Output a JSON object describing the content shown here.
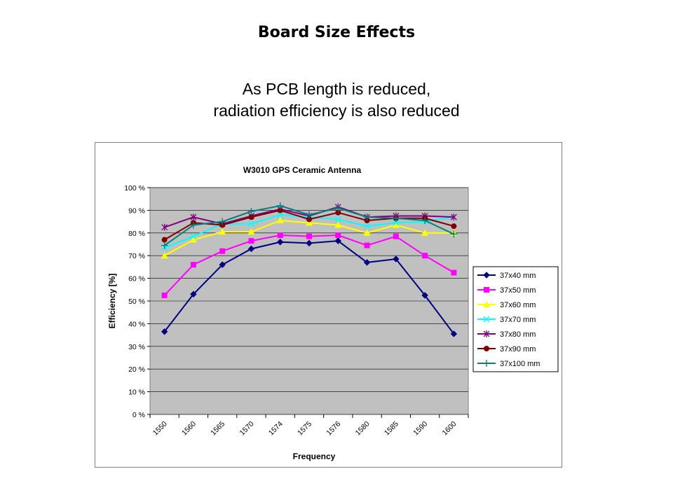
{
  "slide": {
    "title": "Board Size Effects",
    "subtitle_line1": "As PCB length is reduced,",
    "subtitle_line2": "radiation efficiency is also reduced"
  },
  "chart_data": {
    "type": "line",
    "title": "W3010 GPS Ceramic Antenna",
    "xlabel": "Frequency",
    "ylabel": "Efficiency [%]",
    "categories": [
      "1550",
      "1560",
      "1565",
      "1570",
      "1574",
      "1575",
      "1576",
      "1580",
      "1585",
      "1590",
      "1600"
    ],
    "ylim": [
      0,
      100
    ],
    "yticks": [
      "0 %",
      "10 %",
      "20 %",
      "30 %",
      "40 %",
      "50 %",
      "60 %",
      "70 %",
      "80 %",
      "90 %",
      "100 %"
    ],
    "grid": true,
    "legend_position": "right",
    "plot_background": "#c0c0c0",
    "series": [
      {
        "name": "37x40 mm",
        "color": "#000080",
        "marker": "diamond",
        "values": [
          36.5,
          53,
          66,
          73,
          76,
          75.5,
          76.5,
          67,
          68.5,
          52.5,
          35.5
        ]
      },
      {
        "name": "37x50 mm",
        "color": "#ff00ff",
        "marker": "square",
        "values": [
          52.5,
          66,
          72,
          76.5,
          79,
          78.5,
          79,
          74.5,
          78.5,
          70,
          62.5
        ]
      },
      {
        "name": "37x60 mm",
        "color": "#ffff00",
        "marker": "triangle",
        "values": [
          70,
          77,
          80.5,
          80.5,
          85.5,
          84.5,
          83.5,
          80,
          83.5,
          80,
          80
        ]
      },
      {
        "name": "37x70 mm",
        "color": "#00ffff",
        "marker": "x",
        "values": [
          73.5,
          78.5,
          84,
          84,
          88,
          87,
          86,
          83,
          84.5,
          85,
          87
        ]
      },
      {
        "name": "37x80 mm",
        "color": "#800080",
        "marker": "asterisk",
        "values": [
          82.5,
          87,
          84,
          87.5,
          90.5,
          87.5,
          91.5,
          87,
          87.5,
          87.5,
          87
        ]
      },
      {
        "name": "37x90 mm",
        "color": "#800000",
        "marker": "circle",
        "values": [
          77,
          84.5,
          83.5,
          87,
          90,
          86,
          89,
          85.5,
          86.5,
          86.5,
          83
        ]
      },
      {
        "name": "37x100 mm",
        "color": "#008080",
        "marker": "plus",
        "values": [
          74.5,
          83.5,
          85,
          89.5,
          92,
          88,
          91,
          87,
          86.5,
          85.5,
          79.5
        ]
      }
    ]
  }
}
